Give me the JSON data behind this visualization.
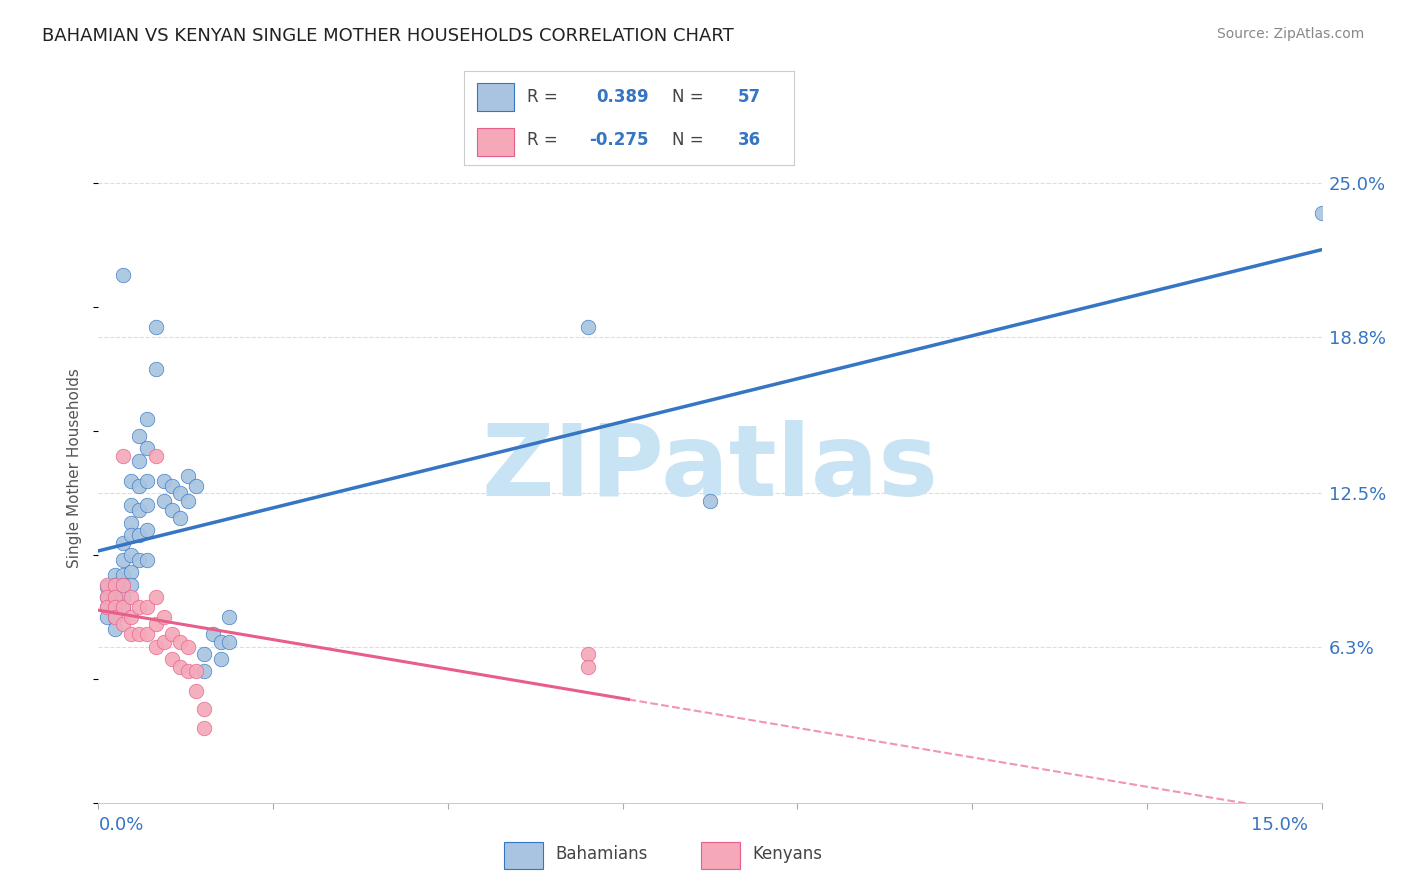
{
  "title": "BAHAMIAN VS KENYAN SINGLE MOTHER HOUSEHOLDS CORRELATION CHART",
  "source": "Source: ZipAtlas.com",
  "ylabel": "Single Mother Households",
  "right_yticks": [
    "6.3%",
    "12.5%",
    "18.8%",
    "25.0%"
  ],
  "right_ytick_vals": [
    0.063,
    0.125,
    0.188,
    0.25
  ],
  "xlim": [
    0.0,
    0.15
  ],
  "ylim": [
    0.0,
    0.27
  ],
  "blue_R": 0.389,
  "blue_N": 57,
  "pink_R": -0.275,
  "pink_N": 36,
  "blue_color": "#a8c4e0",
  "pink_color": "#f4a8b8",
  "blue_line_color": "#3575c3",
  "pink_line_color": "#e85d8a",
  "watermark": "ZIPatlas",
  "watermark_color": "#c8e4f4",
  "background_color": "#ffffff",
  "grid_color": "#dddddd",
  "blue_dots": [
    [
      0.001,
      0.083
    ],
    [
      0.001,
      0.079
    ],
    [
      0.001,
      0.075
    ],
    [
      0.001,
      0.087
    ],
    [
      0.002,
      0.092
    ],
    [
      0.002,
      0.088
    ],
    [
      0.002,
      0.083
    ],
    [
      0.002,
      0.079
    ],
    [
      0.002,
      0.075
    ],
    [
      0.002,
      0.07
    ],
    [
      0.003,
      0.105
    ],
    [
      0.003,
      0.098
    ],
    [
      0.003,
      0.092
    ],
    [
      0.003,
      0.088
    ],
    [
      0.003,
      0.083
    ],
    [
      0.003,
      0.079
    ],
    [
      0.003,
      0.213
    ],
    [
      0.004,
      0.13
    ],
    [
      0.004,
      0.12
    ],
    [
      0.004,
      0.113
    ],
    [
      0.004,
      0.108
    ],
    [
      0.004,
      0.1
    ],
    [
      0.004,
      0.093
    ],
    [
      0.004,
      0.088
    ],
    [
      0.005,
      0.148
    ],
    [
      0.005,
      0.138
    ],
    [
      0.005,
      0.128
    ],
    [
      0.005,
      0.118
    ],
    [
      0.005,
      0.108
    ],
    [
      0.005,
      0.098
    ],
    [
      0.006,
      0.155
    ],
    [
      0.006,
      0.143
    ],
    [
      0.006,
      0.13
    ],
    [
      0.006,
      0.12
    ],
    [
      0.006,
      0.11
    ],
    [
      0.006,
      0.098
    ],
    [
      0.007,
      0.192
    ],
    [
      0.007,
      0.175
    ],
    [
      0.008,
      0.13
    ],
    [
      0.008,
      0.122
    ],
    [
      0.009,
      0.128
    ],
    [
      0.009,
      0.118
    ],
    [
      0.01,
      0.125
    ],
    [
      0.01,
      0.115
    ],
    [
      0.011,
      0.132
    ],
    [
      0.011,
      0.122
    ],
    [
      0.012,
      0.128
    ],
    [
      0.013,
      0.06
    ],
    [
      0.013,
      0.053
    ],
    [
      0.014,
      0.068
    ],
    [
      0.015,
      0.065
    ],
    [
      0.015,
      0.058
    ],
    [
      0.016,
      0.075
    ],
    [
      0.016,
      0.065
    ],
    [
      0.06,
      0.192
    ],
    [
      0.075,
      0.122
    ],
    [
      0.15,
      0.238
    ]
  ],
  "pink_dots": [
    [
      0.001,
      0.088
    ],
    [
      0.001,
      0.083
    ],
    [
      0.001,
      0.079
    ],
    [
      0.002,
      0.088
    ],
    [
      0.002,
      0.083
    ],
    [
      0.002,
      0.079
    ],
    [
      0.002,
      0.075
    ],
    [
      0.003,
      0.14
    ],
    [
      0.003,
      0.088
    ],
    [
      0.003,
      0.079
    ],
    [
      0.003,
      0.072
    ],
    [
      0.004,
      0.083
    ],
    [
      0.004,
      0.075
    ],
    [
      0.004,
      0.068
    ],
    [
      0.005,
      0.079
    ],
    [
      0.005,
      0.068
    ],
    [
      0.006,
      0.079
    ],
    [
      0.006,
      0.068
    ],
    [
      0.007,
      0.14
    ],
    [
      0.007,
      0.083
    ],
    [
      0.007,
      0.072
    ],
    [
      0.007,
      0.063
    ],
    [
      0.008,
      0.075
    ],
    [
      0.008,
      0.065
    ],
    [
      0.009,
      0.068
    ],
    [
      0.009,
      0.058
    ],
    [
      0.01,
      0.065
    ],
    [
      0.01,
      0.055
    ],
    [
      0.011,
      0.063
    ],
    [
      0.011,
      0.053
    ],
    [
      0.012,
      0.053
    ],
    [
      0.012,
      0.045
    ],
    [
      0.013,
      0.038
    ],
    [
      0.013,
      0.03
    ],
    [
      0.06,
      0.06
    ],
    [
      0.06,
      0.055
    ]
  ]
}
